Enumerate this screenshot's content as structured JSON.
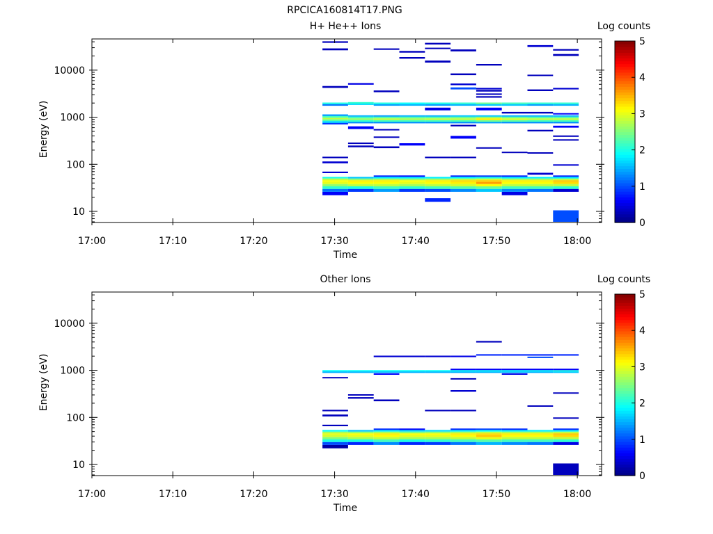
{
  "figure_title": "RPCICA160814T17.PNG",
  "chart_data": [
    {
      "type": "heatmap",
      "title": "H+ He++ Ions",
      "xlabel": "Time",
      "ylabel": "Energy (eV)",
      "x_ticks": [
        "17:00",
        "17:10",
        "17:20",
        "17:30",
        "17:40",
        "17:50",
        "18:00"
      ],
      "xlim": [
        "17:00",
        "18:03"
      ],
      "y_scale": "log",
      "y_ticks": [
        "10",
        "100",
        "1000",
        "10000"
      ],
      "ylim": [
        5.8,
        46000
      ],
      "colorbar": {
        "label": "Log counts",
        "ticks": [
          "0",
          "1",
          "2",
          "3",
          "4",
          "5"
        ],
        "range": [
          0,
          5
        ]
      },
      "time_columns": [
        "17:28:30",
        "17:31:40",
        "17:34:50",
        "17:38:00",
        "17:41:10",
        "17:44:20",
        "17:47:30",
        "17:50:40",
        "17:53:50",
        "17:57:00"
      ],
      "time_end": "18:00:10",
      "cells": [
        [
          0,
          22,
          26,
          0.6
        ],
        [
          0,
          26,
          30,
          1.2
        ],
        [
          0,
          30,
          34,
          2.1
        ],
        [
          0,
          34,
          38,
          2.6
        ],
        [
          0,
          38,
          42,
          3.0
        ],
        [
          0,
          42,
          46,
          3.1
        ],
        [
          0,
          46,
          50,
          2.8
        ],
        [
          0,
          50,
          54,
          2.0
        ],
        [
          0,
          65,
          70,
          0.4
        ],
        [
          0,
          105,
          115,
          0.4
        ],
        [
          0,
          135,
          145,
          0.3
        ],
        [
          0,
          700,
          760,
          0.9
        ],
        [
          0,
          760,
          830,
          1.7
        ],
        [
          0,
          830,
          900,
          2.3
        ],
        [
          0,
          900,
          980,
          2.8
        ],
        [
          0,
          980,
          1060,
          2.2
        ],
        [
          0,
          1060,
          1150,
          1.4
        ],
        [
          0,
          1750,
          1900,
          1.2
        ],
        [
          0,
          1900,
          2050,
          2.0
        ],
        [
          0,
          4200,
          4600,
          0.3
        ],
        [
          0,
          26500,
          29000,
          0.3
        ],
        [
          0,
          38000,
          41000,
          0.3
        ],
        [
          1,
          26,
          30,
          0.9
        ],
        [
          1,
          30,
          34,
          2.0
        ],
        [
          1,
          34,
          38,
          2.8
        ],
        [
          1,
          38,
          42,
          3.1
        ],
        [
          1,
          42,
          46,
          3.2
        ],
        [
          1,
          46,
          50,
          2.6
        ],
        [
          1,
          50,
          54,
          1.6
        ],
        [
          1,
          230,
          250,
          0.3
        ],
        [
          1,
          270,
          290,
          0.3
        ],
        [
          1,
          560,
          640,
          0.6
        ],
        [
          1,
          740,
          800,
          1.3
        ],
        [
          1,
          800,
          870,
          2.1
        ],
        [
          1,
          870,
          950,
          2.6
        ],
        [
          1,
          950,
          1030,
          2.2
        ],
        [
          1,
          1030,
          1100,
          1.5
        ],
        [
          1,
          1850,
          1950,
          1.7
        ],
        [
          1,
          1950,
          2100,
          2.1
        ],
        [
          1,
          4900,
          5300,
          0.5
        ],
        [
          2,
          26,
          30,
          1.4
        ],
        [
          2,
          30,
          34,
          2.2
        ],
        [
          2,
          34,
          38,
          2.8
        ],
        [
          2,
          38,
          42,
          3.1
        ],
        [
          2,
          42,
          46,
          3.2
        ],
        [
          2,
          46,
          50,
          2.7
        ],
        [
          2,
          50,
          54,
          1.8
        ],
        [
          2,
          54,
          58,
          0.8
        ],
        [
          2,
          220,
          240,
          0.3
        ],
        [
          2,
          370,
          390,
          0.3
        ],
        [
          2,
          530,
          560,
          0.3
        ],
        [
          2,
          740,
          800,
          1.3
        ],
        [
          2,
          800,
          870,
          2.2
        ],
        [
          2,
          870,
          950,
          2.8
        ],
        [
          2,
          950,
          1030,
          2.3
        ],
        [
          2,
          1030,
          1100,
          1.4
        ],
        [
          2,
          1750,
          1900,
          1.4
        ],
        [
          2,
          1900,
          2050,
          2.0
        ],
        [
          2,
          3400,
          3700,
          0.3
        ],
        [
          2,
          27000,
          29000,
          0.3
        ],
        [
          3,
          26,
          30,
          0.9
        ],
        [
          3,
          30,
          34,
          2.1
        ],
        [
          3,
          34,
          38,
          2.7
        ],
        [
          3,
          38,
          42,
          3.0
        ],
        [
          3,
          42,
          46,
          3.1
        ],
        [
          3,
          46,
          50,
          2.6
        ],
        [
          3,
          50,
          54,
          1.8
        ],
        [
          3,
          54,
          58,
          0.7
        ],
        [
          3,
          250,
          280,
          0.6
        ],
        [
          3,
          740,
          800,
          1.3
        ],
        [
          3,
          800,
          870,
          2.2
        ],
        [
          3,
          870,
          950,
          2.7
        ],
        [
          3,
          950,
          1030,
          2.3
        ],
        [
          3,
          1030,
          1100,
          1.5
        ],
        [
          3,
          1750,
          1900,
          1.5
        ],
        [
          3,
          1900,
          2050,
          1.9
        ],
        [
          3,
          17500,
          19000,
          0.3
        ],
        [
          3,
          23500,
          25500,
          0.3
        ],
        [
          4,
          16,
          19,
          0.8
        ],
        [
          4,
          26,
          30,
          1.0
        ],
        [
          4,
          30,
          34,
          2.2
        ],
        [
          4,
          34,
          38,
          2.8
        ],
        [
          4,
          38,
          42,
          3.1
        ],
        [
          4,
          42,
          46,
          3.2
        ],
        [
          4,
          46,
          50,
          2.7
        ],
        [
          4,
          50,
          54,
          1.8
        ],
        [
          4,
          135,
          145,
          0.3
        ],
        [
          4,
          1400,
          1600,
          0.5
        ],
        [
          4,
          740,
          800,
          1.3
        ],
        [
          4,
          800,
          870,
          2.2
        ],
        [
          4,
          870,
          950,
          2.8
        ],
        [
          4,
          950,
          1030,
          2.3
        ],
        [
          4,
          1030,
          1100,
          1.5
        ],
        [
          4,
          1750,
          1900,
          1.4
        ],
        [
          4,
          1900,
          2050,
          2.0
        ],
        [
          4,
          14500,
          16000,
          0.3
        ],
        [
          4,
          28000,
          30000,
          0.3
        ],
        [
          4,
          35000,
          38000,
          0.3
        ],
        [
          5,
          26,
          30,
          1.3
        ],
        [
          5,
          30,
          34,
          2.3
        ],
        [
          5,
          34,
          38,
          2.9
        ],
        [
          5,
          38,
          42,
          3.2
        ],
        [
          5,
          42,
          46,
          3.3
        ],
        [
          5,
          46,
          50,
          2.8
        ],
        [
          5,
          50,
          54,
          1.9
        ],
        [
          5,
          54,
          58,
          0.8
        ],
        [
          5,
          135,
          145,
          0.3
        ],
        [
          5,
          350,
          400,
          0.6
        ],
        [
          5,
          640,
          690,
          0.3
        ],
        [
          5,
          740,
          800,
          1.3
        ],
        [
          5,
          800,
          870,
          2.2
        ],
        [
          5,
          870,
          950,
          2.8
        ],
        [
          5,
          950,
          1030,
          2.4
        ],
        [
          5,
          1030,
          1100,
          1.6
        ],
        [
          5,
          1750,
          1900,
          1.5
        ],
        [
          5,
          1900,
          2050,
          2.1
        ],
        [
          5,
          3900,
          4300,
          1.0
        ],
        [
          5,
          4800,
          5200,
          0.4
        ],
        [
          5,
          7800,
          8500,
          0.3
        ],
        [
          5,
          25000,
          27500,
          0.3
        ]
      ]
    }
  ]
}
